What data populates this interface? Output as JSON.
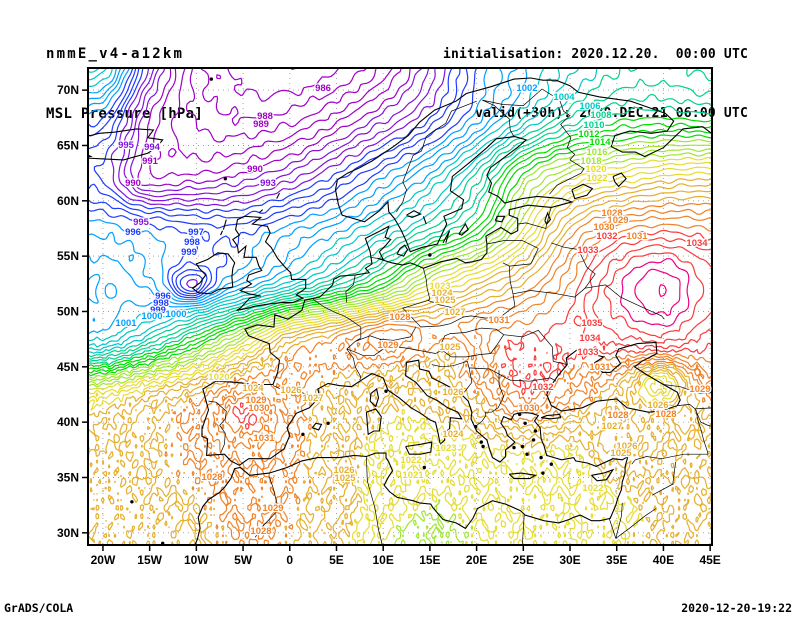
{
  "header": {
    "model": "nmmE_v4-a12km",
    "field": "MSL Pressure [hPa]",
    "init": "initialisation: 2020.12.20.  00:00 UTC",
    "valid": "valid(+30h): 2020.DEC.21 06:00 UTC"
  },
  "footer": {
    "left": "GrADS/COLA",
    "right": "2020-12-20-19:22"
  },
  "axes": {
    "x_tick_labels": [
      "20W",
      "15W",
      "10W",
      "5W",
      "0",
      "5E",
      "10E",
      "15E",
      "20E",
      "25E",
      "30E",
      "35E",
      "40E",
      "45E"
    ],
    "x_tick_lons": [
      -20,
      -15,
      -10,
      -5,
      0,
      5,
      10,
      15,
      20,
      25,
      30,
      35,
      40,
      45
    ],
    "y_tick_labels": [
      "70N",
      "65N",
      "60N",
      "55N",
      "50N",
      "45N",
      "40N",
      "35N",
      "30N"
    ],
    "y_tick_lats": [
      70,
      65,
      60,
      55,
      50,
      45,
      40,
      35,
      30
    ],
    "lon_range": [
      -21.6,
      45.2
    ],
    "lat_range": [
      28.9,
      72.0
    ]
  },
  "chart_data": {
    "type": "heatmap",
    "render_as": "contour-lines",
    "title": "MSL Pressure [hPa]",
    "units": "hPa",
    "contour_interval": 1,
    "level_range": [
      982,
      1040
    ],
    "palette": [
      "#a000c8",
      "#8214dc",
      "#1e3cff",
      "#00a0ff",
      "#00c8c8",
      "#00d28c",
      "#00dc00",
      "#a0e632",
      "#e6dc32",
      "#e6af2d",
      "#f08228",
      "#fa3c3c",
      "#f00082"
    ],
    "palette_rule": {
      "base_level": 988,
      "levels_per_color": 4
    },
    "grid": {
      "lons": [
        -20,
        -15,
        -10,
        -5,
        0,
        5,
        10,
        15,
        20,
        25,
        30,
        35,
        40,
        45
      ],
      "lats": [
        72.5,
        67.5,
        62.5,
        57.5,
        52.5,
        47.5,
        42.5,
        37.5,
        32.5,
        27.5
      ],
      "values": [
        [
          1006,
          995,
          987.5,
          985.5,
          985,
          985.5,
          988,
          993,
          999,
          1002.5,
          1005.5,
          1007.5,
          1008,
          1007.5
        ],
        [
          999,
          991,
          988,
          987,
          987.5,
          989.5,
          992.5,
          996,
          1000.5,
          1005,
          1009,
          1011.5,
          1012,
          1011.5
        ],
        [
          996,
          991.5,
          990,
          991,
          993,
          996,
          999.5,
          1003,
          1008,
          1015,
          1019,
          1021,
          1022.5,
          1023
        ],
        [
          1000.5,
          999.5,
          998.5,
          998.5,
          1000.5,
          1002.5,
          1005.5,
          1009,
          1013,
          1020,
          1027,
          1030.5,
          1031.5,
          1031
        ],
        [
          1003,
          1001.5,
          1000,
          1002,
          1005.5,
          1009.5,
          1014,
          1020,
          1024,
          1027,
          1031,
          1035.5,
          1037.8,
          1034.5
        ],
        [
          1004,
          1008,
          1013,
          1019,
          1025.5,
          1027.5,
          1028.5,
          1027,
          1030.5,
          1032,
          1032.5,
          1033.5,
          1034.5,
          1032.5
        ],
        [
          1021.5,
          1024.5,
          1027,
          1030,
          1028.5,
          1026,
          1024.5,
          1025,
          1027.5,
          1031.5,
          1029.5,
          1026,
          1024.5,
          1028.5
        ],
        [
          1026,
          1027,
          1028,
          1029.5,
          1028.5,
          1025,
          1022.5,
          1021.5,
          1022.5,
          1023.5,
          1023,
          1025.5,
          1026,
          1025.5
        ],
        [
          1026.5,
          1026.8,
          1027.2,
          1028.3,
          1027.8,
          1025.5,
          1021.5,
          1019.8,
          1020.5,
          1021.5,
          1022,
          1023,
          1024,
          1025
        ],
        [
          1026,
          1026.3,
          1026.8,
          1027.8,
          1027.2,
          1024,
          1019.8,
          1019,
          1019.8,
          1021,
          1021.8,
          1023,
          1024.5,
          1026
        ]
      ],
      "bumps": [
        [
          -10.6,
          52.3,
          -5.5,
          2.2,
          1.5
        ],
        [
          39.6,
          43.8,
          -5.5,
          2.6,
          1.8
        ],
        [
          -4.8,
          40.4,
          1.6,
          3,
          2
        ],
        [
          12,
          48.5,
          3.2,
          6,
          2.2
        ],
        [
          18.2,
          46.6,
          -2.5,
          2.5,
          1.6
        ],
        [
          40.5,
          40.8,
          2,
          2,
          1.5
        ],
        [
          -15.5,
          61.5,
          -2,
          3,
          2
        ],
        [
          14.5,
          29.5,
          -1.2,
          4,
          2.5
        ]
      ]
    },
    "contour_labels": [
      [
        986,
        323,
        88
      ],
      [
        988,
        265,
        116
      ],
      [
        989,
        261,
        124
      ],
      [
        995,
        126,
        145
      ],
      [
        994,
        152,
        147
      ],
      [
        991,
        150,
        161
      ],
      [
        990,
        133,
        183
      ],
      [
        990,
        255,
        169
      ],
      [
        993,
        268,
        183
      ],
      [
        996,
        133,
        232
      ],
      [
        995,
        141,
        222
      ],
      [
        997,
        196,
        232
      ],
      [
        998,
        192,
        242
      ],
      [
        999,
        189,
        252
      ],
      [
        996,
        163,
        296
      ],
      [
        998,
        161,
        303
      ],
      [
        999,
        158,
        310
      ],
      [
        1000,
        176,
        314
      ],
      [
        1000,
        152,
        316
      ],
      [
        1001,
        126,
        323
      ],
      [
        1002,
        527,
        88
      ],
      [
        1004,
        564,
        97
      ],
      [
        1006,
        590,
        106
      ],
      [
        1008,
        601,
        115
      ],
      [
        1010,
        594,
        125
      ],
      [
        1012,
        589,
        134
      ],
      [
        1014,
        600,
        142
      ],
      [
        1016,
        597,
        152
      ],
      [
        1018,
        591,
        161
      ],
      [
        1020,
        596,
        169
      ],
      [
        1022,
        597,
        178
      ],
      [
        1028,
        612,
        213
      ],
      [
        1029,
        618,
        220
      ],
      [
        1030,
        604,
        227
      ],
      [
        1032,
        607,
        236
      ],
      [
        1031,
        637,
        236
      ],
      [
        1033,
        588,
        250
      ],
      [
        1034,
        697,
        243
      ],
      [
        1035,
        592,
        323
      ],
      [
        1034,
        590,
        338
      ],
      [
        1033,
        588,
        352
      ],
      [
        1031,
        600,
        367
      ],
      [
        1029,
        700,
        389
      ],
      [
        1026,
        658,
        405
      ],
      [
        1028,
        666,
        414
      ],
      [
        1028,
        618,
        415
      ],
      [
        1027,
        612,
        426
      ],
      [
        1026,
        627,
        446
      ],
      [
        1025,
        621,
        453
      ],
      [
        1022,
        593,
        488
      ],
      [
        1023,
        440,
        286
      ],
      [
        1024,
        442,
        293
      ],
      [
        1025,
        445,
        300
      ],
      [
        1027,
        455,
        312
      ],
      [
        1028,
        400,
        317
      ],
      [
        1029,
        388,
        345
      ],
      [
        1031,
        499,
        320
      ],
      [
        1025,
        450,
        347
      ],
      [
        1026,
        453,
        392
      ],
      [
        1024,
        453,
        434
      ],
      [
        1032,
        543,
        387
      ],
      [
        1030,
        529,
        408
      ],
      [
        1020,
        219,
        377
      ],
      [
        1024,
        253,
        388
      ],
      [
        1026,
        291,
        390
      ],
      [
        1027,
        313,
        398
      ],
      [
        1029,
        256,
        400
      ],
      [
        1030,
        259,
        408
      ],
      [
        1031,
        264,
        438
      ],
      [
        1028,
        212,
        477
      ],
      [
        1026,
        344,
        470
      ],
      [
        1025,
        345,
        478
      ],
      [
        1029,
        273,
        508
      ],
      [
        1028,
        261,
        531
      ],
      [
        1022,
        411,
        460
      ],
      [
        1021,
        413,
        475
      ],
      [
        1023,
        446,
        448
      ]
    ]
  }
}
